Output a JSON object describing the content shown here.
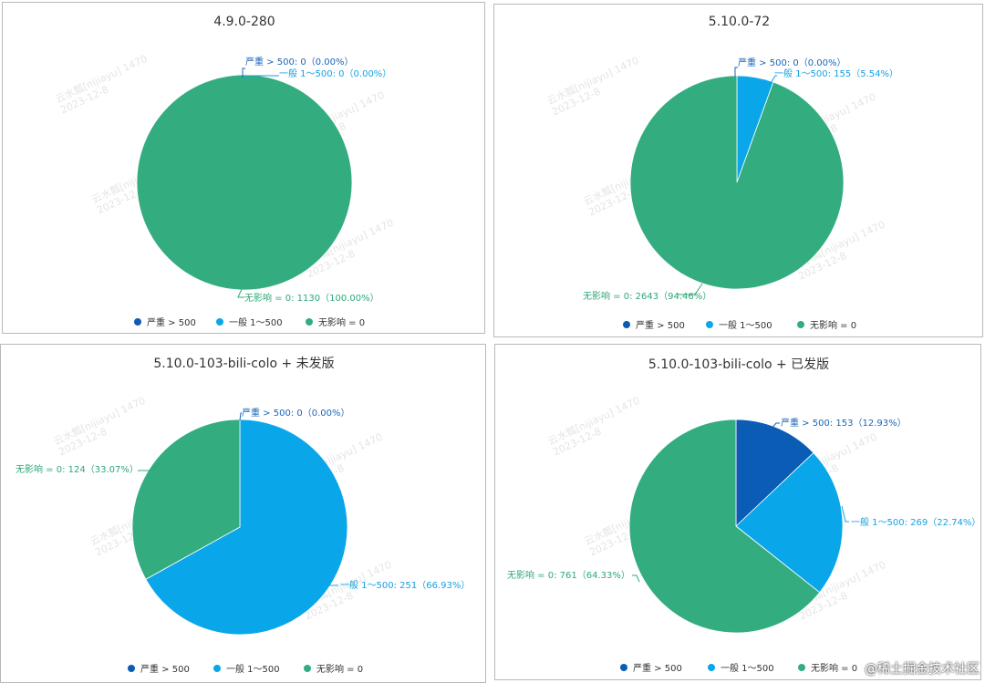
{
  "colors": {
    "severe": "#0a5cb4",
    "general": "#0aa6ea",
    "none": "#33ad7f",
    "title_text": "#333333"
  },
  "legend": [
    "严重 > 500",
    "一般 1～500",
    "无影响 = 0"
  ],
  "watermark": [
    "云水瓢[nijiayu] 1470",
    "2023-12-8"
  ],
  "site_mark": "@稀土掘金技术社区",
  "chart_data": [
    {
      "type": "pie",
      "title": "4.9.0-280",
      "slices": [
        {
          "name": "严重 > 500",
          "value": 0,
          "percent": 0.0,
          "label": "严重 > 500: 0（0.00%）"
        },
        {
          "name": "一般 1～500",
          "value": 0,
          "percent": 0.0,
          "label": "一般 1～500: 0（0.00%）"
        },
        {
          "name": "无影响 = 0",
          "value": 1130,
          "percent": 100.0,
          "label": "无影响 = 0: 1130（100.00%）"
        }
      ]
    },
    {
      "type": "pie",
      "title": "5.10.0-72",
      "slices": [
        {
          "name": "严重 > 500",
          "value": 0,
          "percent": 0.0,
          "label": "严重 > 500: 0（0.00%）"
        },
        {
          "name": "一般 1～500",
          "value": 155,
          "percent": 5.54,
          "label": "一般 1～500: 155（5.54%）"
        },
        {
          "name": "无影响 = 0",
          "value": 2643,
          "percent": 94.46,
          "label": "无影响 = 0: 2643（94.46%）"
        }
      ]
    },
    {
      "type": "pie",
      "title": "5.10.0-103-bili-colo + 未发版",
      "slices": [
        {
          "name": "严重 > 500",
          "value": 0,
          "percent": 0.0,
          "label": "严重 > 500: 0（0.00%）"
        },
        {
          "name": "一般 1～500",
          "value": 251,
          "percent": 66.93,
          "label": "一般 1～500: 251（66.93%）"
        },
        {
          "name": "无影响 = 0",
          "value": 124,
          "percent": 33.07,
          "label": "无影响 = 0: 124（33.07%）"
        }
      ]
    },
    {
      "type": "pie",
      "title": "5.10.0-103-bili-colo + 已发版",
      "slices": [
        {
          "name": "严重 > 500",
          "value": 153,
          "percent": 12.93,
          "label": "严重 > 500: 153（12.93%）"
        },
        {
          "name": "一般 1～500",
          "value": 269,
          "percent": 22.74,
          "label": "一般 1～500: 269（22.74%）"
        },
        {
          "name": "无影响 = 0",
          "value": 761,
          "percent": 64.33,
          "label": "无影响 = 0: 761（64.33%）"
        }
      ]
    }
  ]
}
